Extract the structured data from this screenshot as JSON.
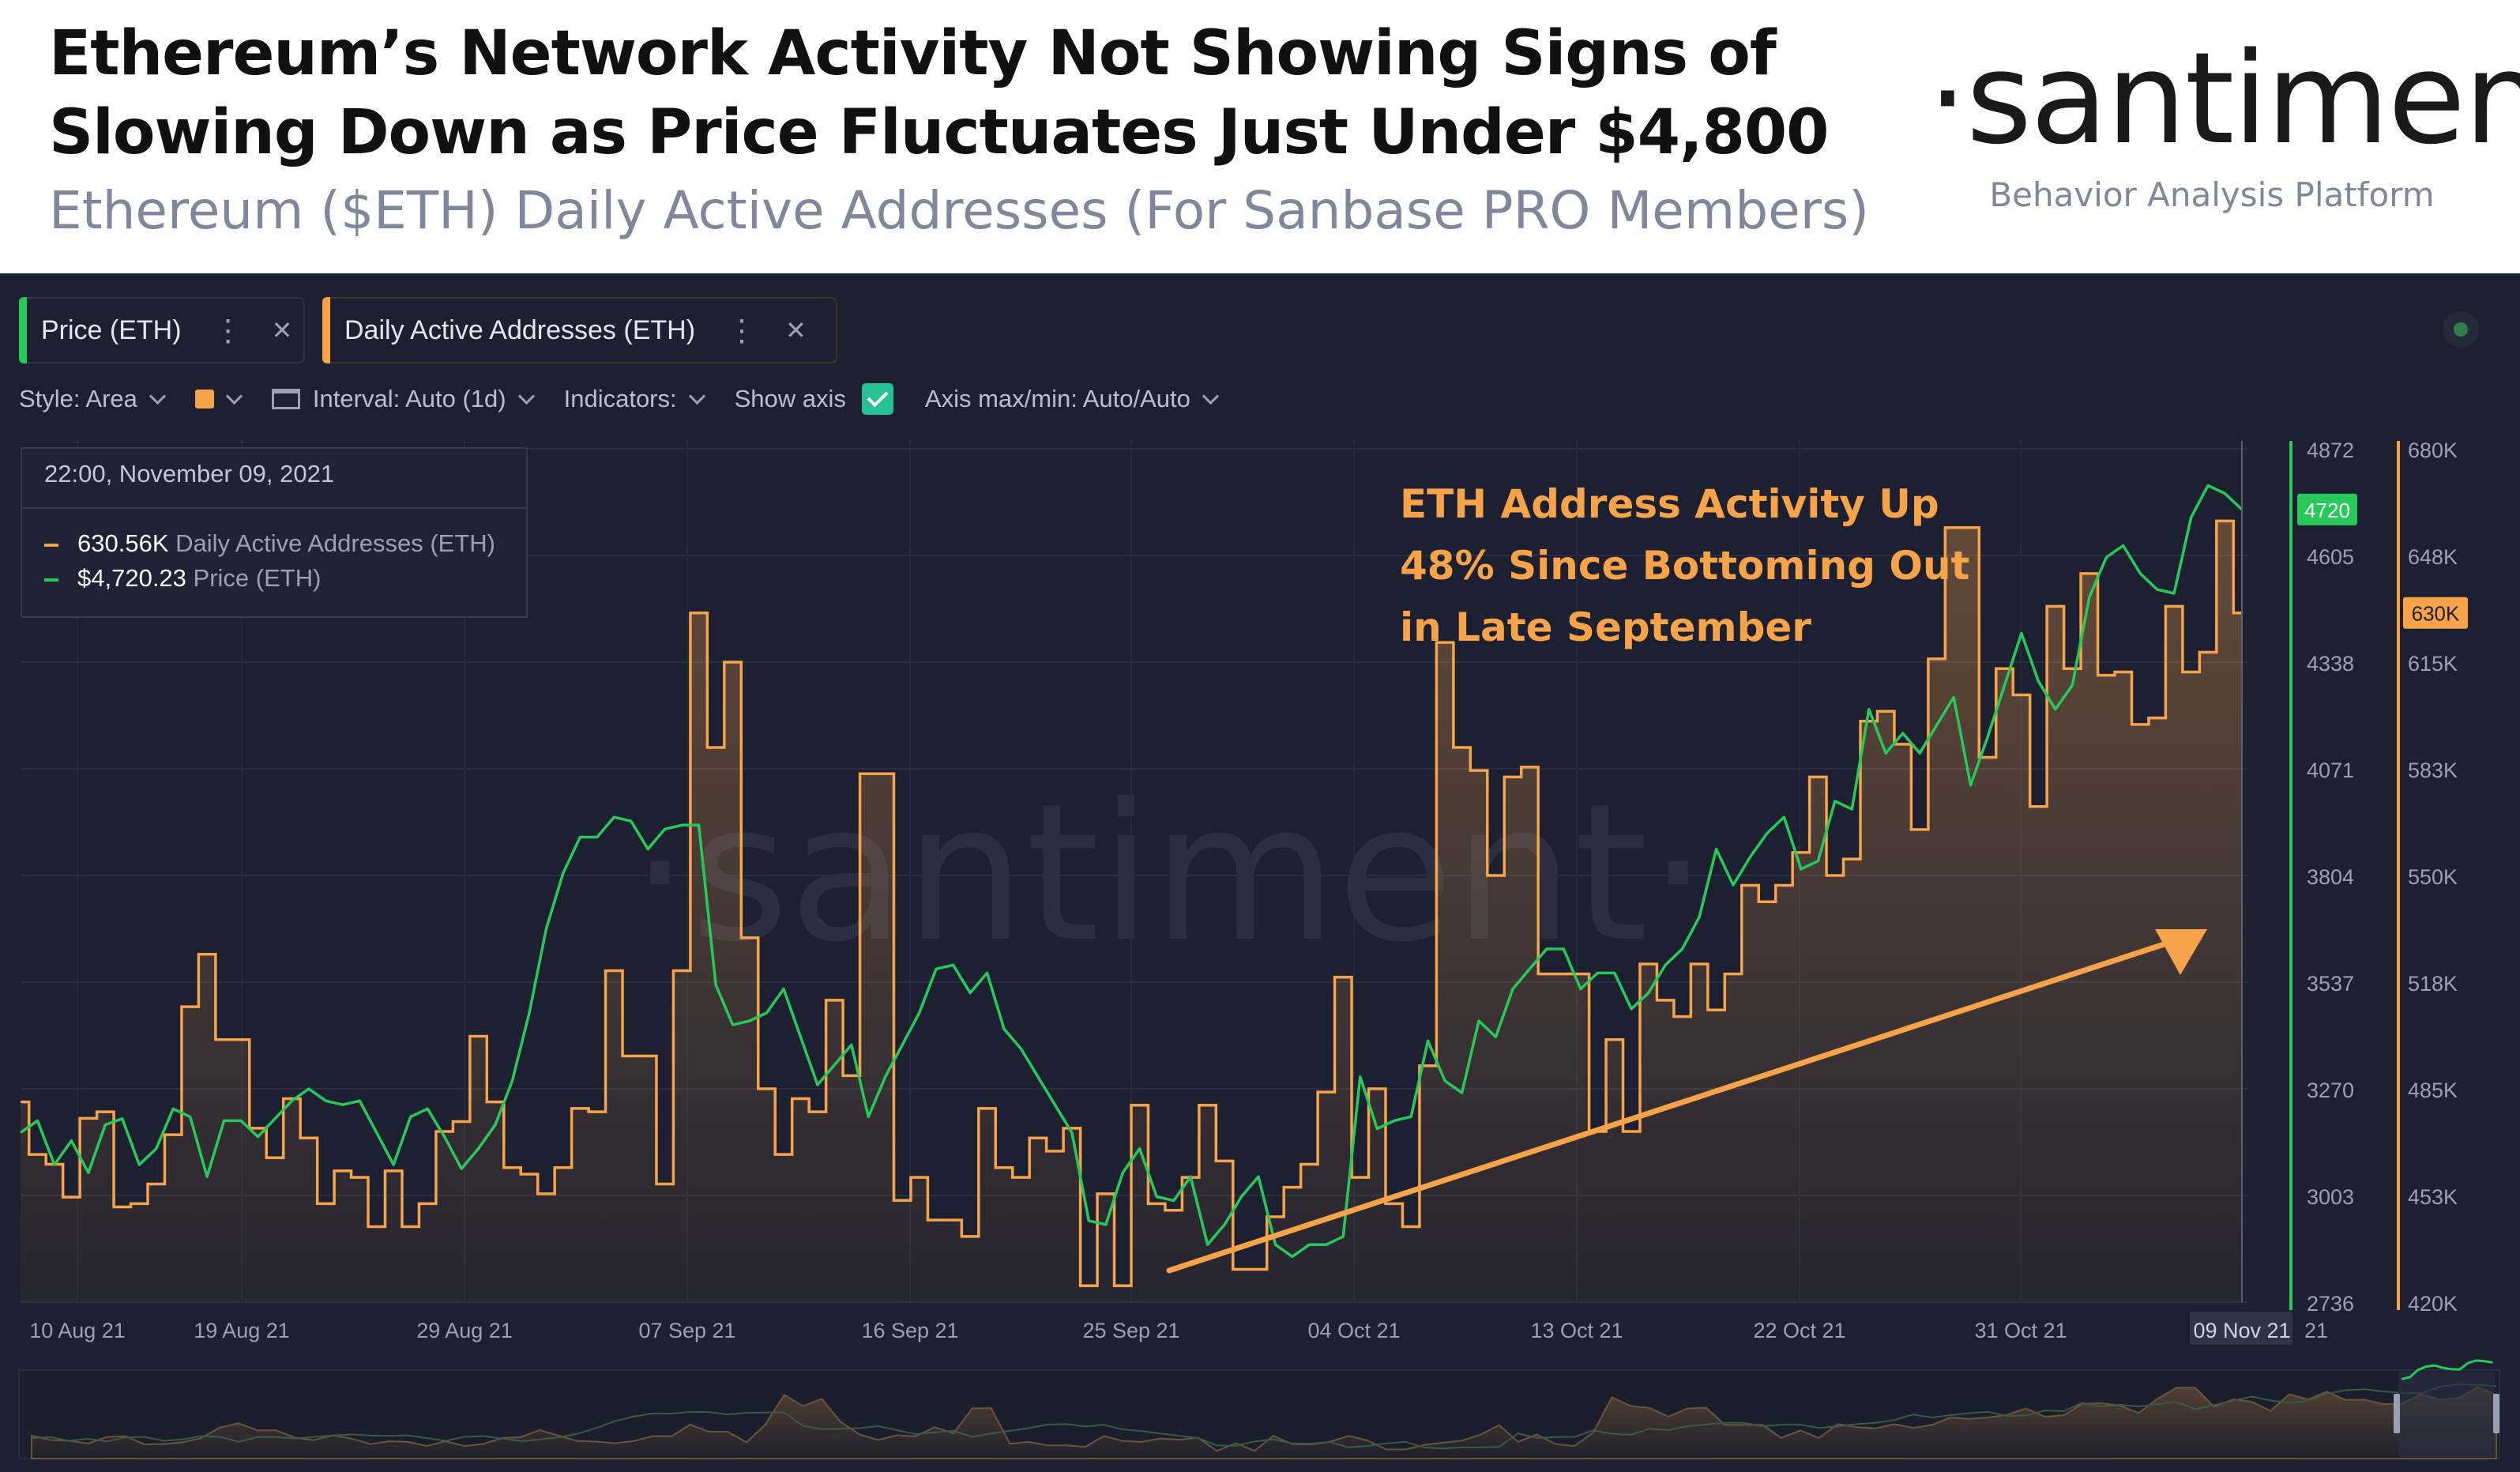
{
  "header": {
    "title": "Ethereum’s Network Activity Not Showing Signs of Slowing Down as Price Fluctuates Just Under $4,800",
    "subtitle": "Ethereum ($ETH) Daily Active Addresses (For Sanbase PRO Members)",
    "brand": "·santiment·",
    "brand_tagline": "Behavior Analysis Platform"
  },
  "metric_chips": [
    {
      "label": "Price (ETH)",
      "color": "#26c95a"
    },
    {
      "label": "Daily Active Addresses (ETH)",
      "color": "#f6a34a"
    }
  ],
  "toolbar": {
    "style": "Style: Area",
    "interval": "Interval: Auto (1d)",
    "indicators": "Indicators:",
    "show_axis": "Show axis",
    "axis_maxmin": "Axis max/min: Auto/Auto"
  },
  "tooltip": {
    "date": "22:00, November 09, 2021",
    "daa_value": "630.56K",
    "daa_label": "Daily Active Addresses (ETH)",
    "price_value": "$4,720.23",
    "price_label": "Price (ETH)"
  },
  "watermark": "·santiment·",
  "annotation": {
    "lines": [
      "ETH Address Activity Up",
      "48% Since Bottoming Out",
      "in Late September"
    ],
    "color": "#f6a34a"
  },
  "chart_data": {
    "type": "line",
    "x_tick_labels": [
      "10 Aug 21",
      "19 Aug 21",
      "29 Aug 21",
      "07 Sep 21",
      "16 Sep 21",
      "25 Sep 21",
      "04 Oct 21",
      "13 Oct 21",
      "22 Oct 21",
      "31 Oct 21",
      "09 Nov 21",
      "21"
    ],
    "price_axis": {
      "ticks": [
        "4872",
        "4605",
        "4338",
        "4071",
        "3804",
        "3537",
        "3270",
        "3003",
        "2736"
      ],
      "min": 2736,
      "max": 4872,
      "current_label": "4720",
      "color": "#26c95a"
    },
    "daa_axis": {
      "ticks": [
        "680K",
        "648K",
        "615K",
        "583K",
        "550K",
        "518K",
        "485K",
        "453K",
        "420K"
      ],
      "min": 420,
      "max": 680,
      "unit": "K",
      "current_label": "630K",
      "color": "#f6a34a"
    },
    "series": [
      {
        "name": "Daily Active Addresses (ETH)",
        "color": "#f6a34a",
        "style": "area-step",
        "unit": "K",
        "values": [
          481,
          465,
          462,
          452,
          476,
          478,
          449,
          450,
          456,
          471,
          510,
          526,
          500,
          500,
          473,
          464,
          482,
          470,
          450,
          460,
          458,
          443,
          460,
          443,
          450,
          472,
          475,
          501,
          481,
          461,
          459,
          453,
          461,
          479,
          478,
          521,
          495,
          495,
          456,
          521,
          630,
          589,
          615,
          531,
          485,
          465,
          482,
          478,
          512,
          489,
          581,
          581,
          451,
          458,
          445,
          445,
          440,
          479,
          461,
          458,
          470,
          466,
          473,
          425,
          453,
          425,
          480,
          450,
          448,
          458,
          480,
          463,
          430,
          430,
          446,
          455,
          462,
          484,
          519,
          458,
          485,
          450,
          443,
          492,
          621,
          589,
          582,
          550,
          580,
          583,
          520,
          520,
          520,
          472,
          500,
          472,
          523,
          512,
          507,
          523,
          509,
          520,
          547,
          542,
          547,
          557,
          580,
          550,
          555,
          597,
          600,
          590,
          564,
          616,
          656,
          656,
          586,
          613,
          605,
          571,
          632,
          613,
          642,
          611,
          612,
          596,
          598,
          632,
          612,
          618,
          658,
          630
        ]
      },
      {
        "name": "Price (ETH)",
        "color": "#26c95a",
        "style": "line",
        "unit": "USD",
        "values": [
          3160,
          3190,
          3080,
          3140,
          3060,
          3180,
          3195,
          3080,
          3120,
          3220,
          3200,
          3050,
          3190,
          3190,
          3150,
          3195,
          3240,
          3270,
          3240,
          3230,
          3240,
          3160,
          3080,
          3200,
          3220,
          3150,
          3070,
          3120,
          3180,
          3290,
          3460,
          3670,
          3810,
          3900,
          3900,
          3950,
          3940,
          3870,
          3920,
          3930,
          3930,
          3530,
          3430,
          3440,
          3460,
          3520,
          3400,
          3280,
          3330,
          3380,
          3200,
          3300,
          3380,
          3460,
          3570,
          3580,
          3510,
          3560,
          3420,
          3370,
          3300,
          3230,
          3160,
          2940,
          2930,
          3060,
          3120,
          3000,
          2990,
          3050,
          2880,
          2930,
          3000,
          3050,
          2880,
          2850,
          2880,
          2880,
          2900,
          3300,
          3170,
          3190,
          3200,
          3390,
          3290,
          3260,
          3440,
          3400,
          3520,
          3570,
          3620,
          3620,
          3520,
          3560,
          3560,
          3470,
          3510,
          3580,
          3620,
          3700,
          3870,
          3780,
          3850,
          3910,
          3950,
          3820,
          3840,
          3990,
          3970,
          4220,
          4110,
          4160,
          4110,
          4180,
          4250,
          4030,
          4150,
          4280,
          4410,
          4290,
          4220,
          4280,
          4500,
          4600,
          4630,
          4560,
          4520,
          4510,
          4700,
          4780,
          4760,
          4720
        ]
      }
    ]
  }
}
